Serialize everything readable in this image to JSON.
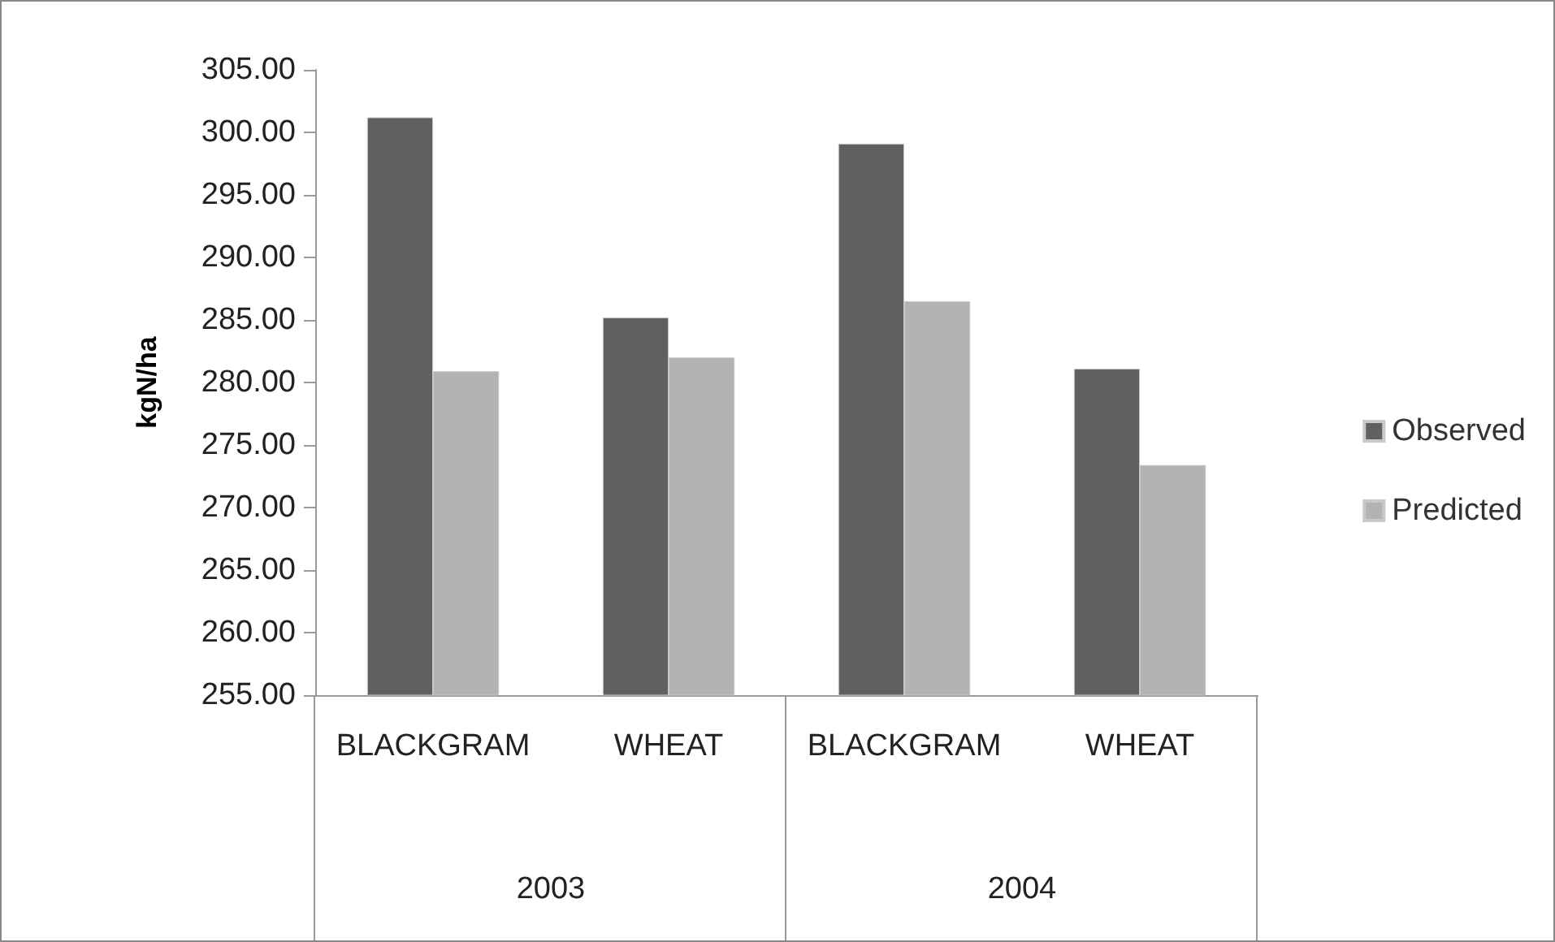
{
  "chart_data": {
    "type": "bar",
    "ylabel": "kgN/ha",
    "categories": [
      "BLACKGRAM",
      "WHEAT",
      "BLACKGRAM",
      "WHEAT"
    ],
    "annotations": [
      "2003",
      "2004"
    ],
    "series": [
      {
        "name": "Observed",
        "color": "#606060",
        "values": [
          301.2,
          285.2,
          299.1,
          281.1
        ]
      },
      {
        "name": "Predicted",
        "color": "#b3b3b3",
        "values": [
          280.9,
          282.0,
          286.5,
          273.4
        ]
      }
    ],
    "ylim": [
      255,
      305
    ],
    "yticks": [
      {
        "value": 255,
        "label": "255.00"
      },
      {
        "value": 260,
        "label": "260.00"
      },
      {
        "value": 265,
        "label": "265.00"
      },
      {
        "value": 270,
        "label": "270.00"
      },
      {
        "value": 275,
        "label": "275.00"
      },
      {
        "value": 280,
        "label": "280.00"
      },
      {
        "value": 285,
        "label": "285.00"
      },
      {
        "value": 290,
        "label": "290.00"
      },
      {
        "value": 295,
        "label": "295.00"
      },
      {
        "value": 300,
        "label": "300.00"
      },
      {
        "value": 305,
        "label": "305.00"
      }
    ],
    "grid": false,
    "legend": "right"
  }
}
